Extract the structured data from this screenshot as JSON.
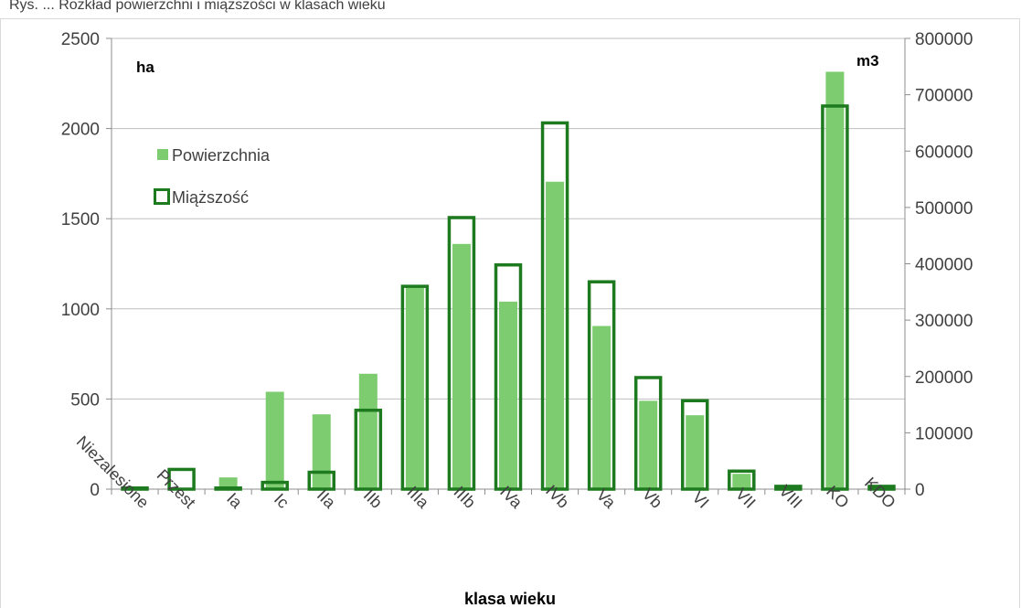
{
  "caption": "Rys. ... Rozkład powierzchni i miąższości w klasach wieku",
  "chart_data": {
    "type": "bar",
    "categories": [
      "Niezalesione",
      "Przest",
      "Ia",
      "Ic",
      "IIa",
      "IIb",
      "IIIa",
      "IIIb",
      "IVa",
      "IVb",
      "Va",
      "Vb",
      "VI",
      "VII",
      "VIII",
      "KO",
      "KDO"
    ],
    "series": [
      {
        "name": "Powierzchnia",
        "axis": "left",
        "color": "#7dcc70",
        "values": [
          15,
          0,
          65,
          540,
          415,
          640,
          1125,
          1360,
          1040,
          1705,
          905,
          490,
          410,
          85,
          10,
          2315,
          15
        ]
      },
      {
        "name": "Miąższość",
        "axis": "right",
        "color": "#1e7a1e",
        "values": [
          2000,
          35000,
          2000,
          12000,
          30000,
          140000,
          360000,
          482000,
          398000,
          650000,
          368000,
          198000,
          157000,
          32000,
          5000,
          680000,
          5000
        ]
      }
    ],
    "y_left": {
      "unit": "ha",
      "min": 0,
      "max": 2500,
      "step": 500,
      "ticks": [
        "0",
        "500",
        "1000",
        "1500",
        "2000",
        "2500"
      ]
    },
    "y_right": {
      "unit": "m3",
      "min": 0,
      "max": 800000,
      "step": 100000,
      "ticks": [
        "0",
        "100000",
        "200000",
        "300000",
        "400000",
        "500000",
        "600000",
        "700000",
        "800000"
      ]
    },
    "xlabel": "klasa wieku",
    "grid": true,
    "legend_position": "top-left"
  }
}
